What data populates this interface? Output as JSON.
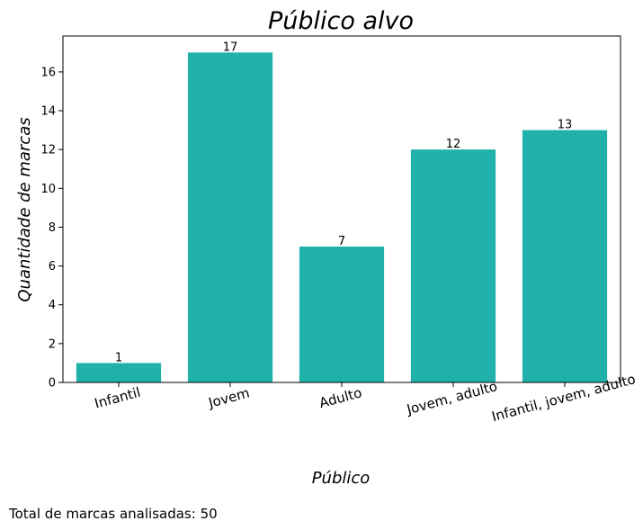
{
  "chart_data": {
    "type": "bar",
    "title": "Público alvo",
    "xlabel": "Público",
    "ylabel": "Quantidade de marcas",
    "categories": [
      "Infantil",
      "Jovem",
      "Adulto",
      "Jovem, adulto",
      "Infantil, jovem, adulto"
    ],
    "values": [
      1,
      17,
      7,
      12,
      13
    ],
    "data_labels": [
      "1",
      "17",
      "7",
      "12",
      "13"
    ],
    "y_ticks": [
      0,
      2,
      4,
      6,
      8,
      10,
      12,
      14,
      16
    ],
    "ylim": [
      0,
      17.85
    ],
    "bar_color": "#20b2aa",
    "x_tick_rotation_deg": 15,
    "grid": false,
    "legend": "none"
  },
  "footnote": "Total de marcas analisadas: 50"
}
